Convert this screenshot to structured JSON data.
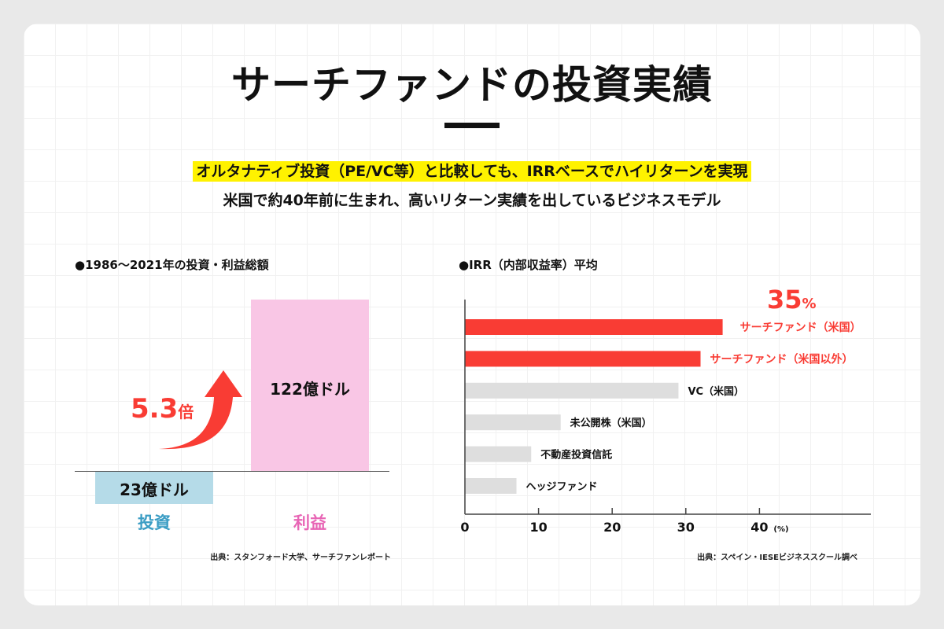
{
  "title": "サーチファンドの投資実績",
  "subtitle_line1": "オルタナティブ投資（PE/VC等）と比較しても、IRRベースでハイリターンを実現",
  "subtitle_line2": "米国で約40年前に生まれ、高いリターン実績を出しているビジネスモデル",
  "colors": {
    "highlight": "#fff200",
    "red": "#f93c34",
    "invest": "#b5dbe8",
    "profit": "#f9c6e5",
    "invest_text": "#3b9dc4",
    "profit_text": "#e865b5",
    "gray_bar": "#dedede"
  },
  "chart_data": [
    {
      "type": "bar",
      "title": "●1986〜2021年の投資・利益総額",
      "categories": [
        "投資",
        "利益"
      ],
      "values": [
        23,
        122
      ],
      "unit": "億ドル",
      "data_labels": [
        "23億ドル",
        "122億ドル"
      ],
      "annotation": {
        "value": "5.3",
        "unit": "倍"
      },
      "source": "出典：スタンフォード大学、サーチファンレポート"
    },
    {
      "type": "bar",
      "orientation": "horizontal",
      "title": "●IRR（内部収益率）平均",
      "categories": [
        "サーチファンド（米国）",
        "サーチファンド（米国以外）",
        "VC（米国）",
        "未公開株（米国）",
        "不動産投資信託",
        "ヘッジファンド"
      ],
      "values": [
        35,
        32,
        29,
        13,
        9,
        7
      ],
      "highlighted": [
        true,
        true,
        false,
        false,
        false,
        false
      ],
      "xlim": [
        0,
        50
      ],
      "xticks": [
        "0",
        "10",
        "20",
        "30",
        "40"
      ],
      "xunit": "(%)",
      "annotation": {
        "value": "35",
        "unit": "%"
      },
      "source": "出典：スペイン・IESEビジネススクール調べ"
    }
  ]
}
